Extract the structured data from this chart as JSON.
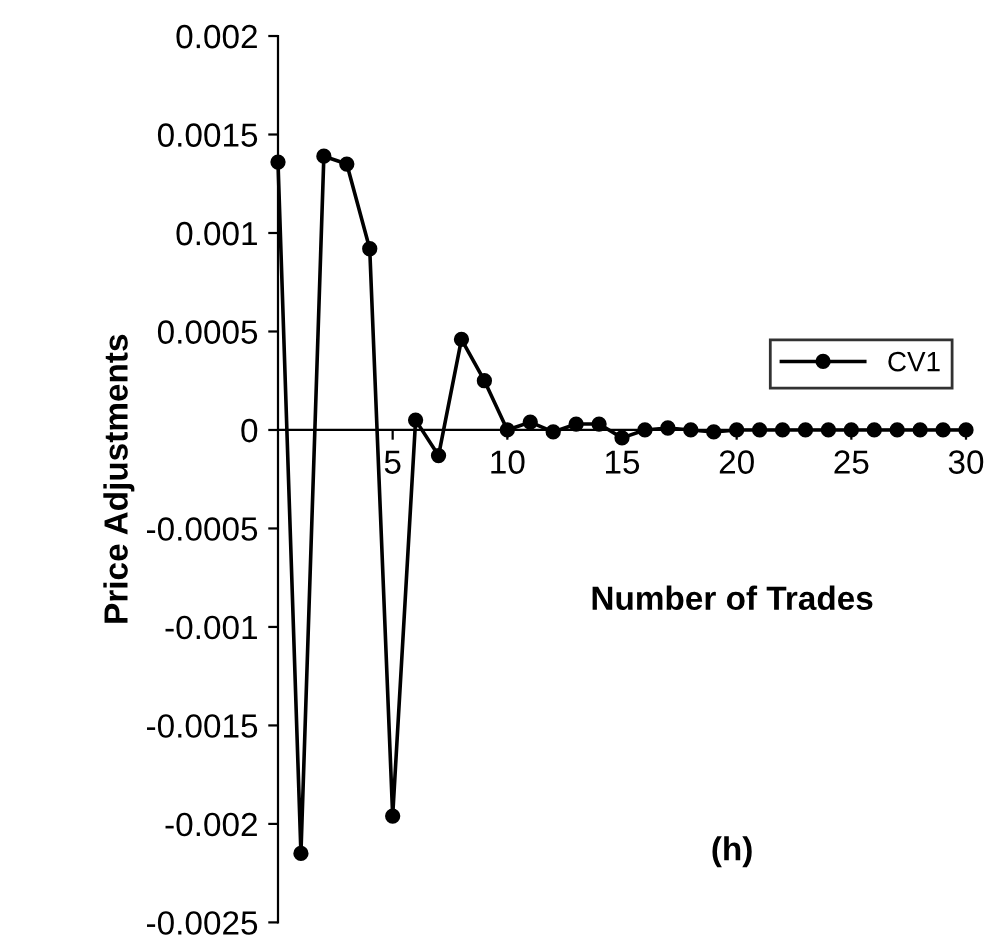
{
  "chart_data": {
    "type": "line",
    "xlabel": "Number of Trades",
    "ylabel": "Price Adjustments",
    "annotations": [
      "(h)"
    ],
    "x": [
      0,
      1,
      2,
      3,
      4,
      5,
      6,
      7,
      8,
      9,
      10,
      11,
      12,
      13,
      14,
      15,
      16,
      17,
      18,
      19,
      20,
      21,
      22,
      23,
      24,
      25,
      26,
      27,
      28,
      29,
      30
    ],
    "series": [
      {
        "name": "CV1",
        "color": "#000000",
        "values": [
          0.00136,
          -0.00215,
          0.00139,
          0.00135,
          0.00092,
          -0.00196,
          5e-05,
          -0.00013,
          0.00046,
          0.00025,
          0,
          4e-05,
          -1e-05,
          3e-05,
          3e-05,
          -4e-05,
          0,
          1e-05,
          0,
          -1e-05,
          0,
          0,
          0,
          0,
          0,
          0,
          0,
          0,
          0,
          0,
          0
        ]
      }
    ],
    "xlim": [
      0,
      30
    ],
    "xticks": [
      5,
      10,
      15,
      20,
      25,
      30
    ],
    "ylim": [
      -0.0025,
      0.002
    ],
    "yticks": [
      {
        "value": -0.0025,
        "label": "-0.0025"
      },
      {
        "value": -0.002,
        "label": "-0.002"
      },
      {
        "value": -0.0015,
        "label": "-0.0015"
      },
      {
        "value": -0.001,
        "label": "-0.001"
      },
      {
        "value": -0.0005,
        "label": "-0.0005"
      },
      {
        "value": 0,
        "label": "0"
      },
      {
        "value": 0.0005,
        "label": "0.0005"
      },
      {
        "value": 0.001,
        "label": "0.001"
      },
      {
        "value": 0.0015,
        "label": "0.0015"
      },
      {
        "value": 0.002,
        "label": "0.002"
      }
    ],
    "legend": "right",
    "marker": "circle",
    "line_style": "solid",
    "grid": false
  }
}
